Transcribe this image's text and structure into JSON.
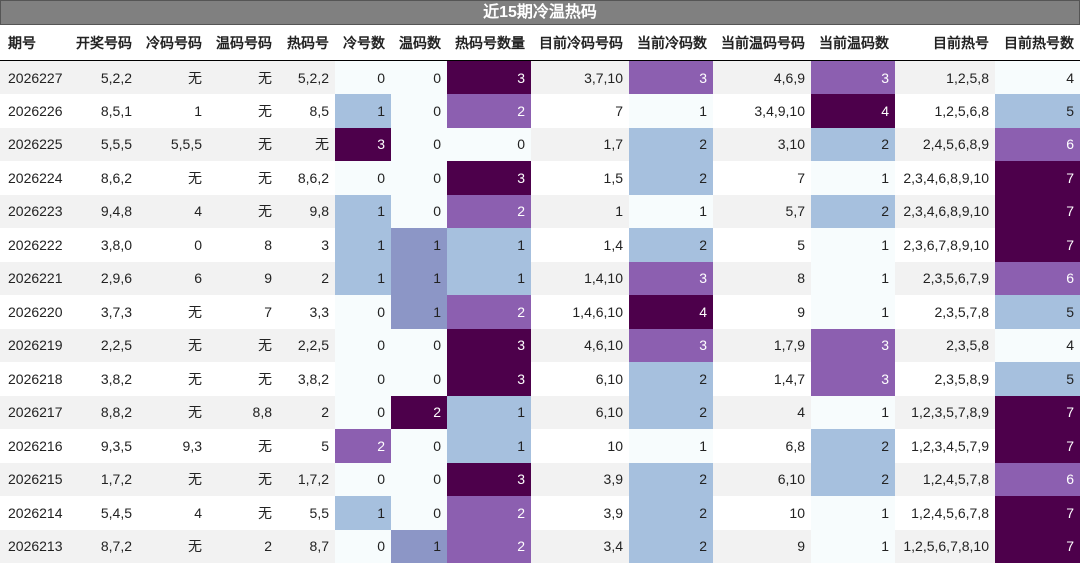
{
  "title": "近15期冷温热码",
  "table": {
    "header": [
      "期号",
      "开奖号码",
      "冷码号码",
      "温码号码",
      "热码号",
      "冷号数",
      "温码数",
      "热码号数量",
      "目前冷码号码",
      "当前冷码数",
      "当前温码号码",
      "当前温码数",
      "目前热号",
      "目前热号数"
    ],
    "rows": [
      [
        "2026227",
        "5,2,2",
        "无",
        "无",
        "5,2,2",
        0,
        0,
        3,
        "3,7,10",
        3,
        "4,6,9",
        3,
        "1,2,5,8",
        4
      ],
      [
        "2026226",
        "8,5,1",
        "1",
        "无",
        "8,5",
        1,
        0,
        2,
        "7",
        1,
        "3,4,9,10",
        4,
        "1,2,5,6,8",
        5
      ],
      [
        "2026225",
        "5,5,5",
        "5,5,5",
        "无",
        "无",
        3,
        0,
        0,
        "1,7",
        2,
        "3,10",
        2,
        "2,4,5,6,8,9",
        6
      ],
      [
        "2026224",
        "8,6,2",
        "无",
        "无",
        "8,6,2",
        0,
        0,
        3,
        "1,5",
        2,
        "7",
        1,
        "2,3,4,6,8,9,10",
        7
      ],
      [
        "2026223",
        "9,4,8",
        "4",
        "无",
        "9,8",
        1,
        0,
        2,
        "1",
        1,
        "5,7",
        2,
        "2,3,4,6,8,9,10",
        7
      ],
      [
        "2026222",
        "3,8,0",
        "0",
        "8",
        "3",
        1,
        1,
        1,
        "1,4",
        2,
        "5",
        1,
        "2,3,6,7,8,9,10",
        7
      ],
      [
        "2026221",
        "2,9,6",
        "6",
        "9",
        "2",
        1,
        1,
        1,
        "1,4,10",
        3,
        "8",
        1,
        "2,3,5,6,7,9",
        6
      ],
      [
        "2026220",
        "3,7,3",
        "无",
        "7",
        "3,3",
        0,
        1,
        2,
        "1,4,6,10",
        4,
        "9",
        1,
        "2,3,5,7,8",
        5
      ],
      [
        "2026219",
        "2,2,5",
        "无",
        "无",
        "2,2,5",
        0,
        0,
        3,
        "4,6,10",
        3,
        "1,7,9",
        3,
        "2,3,5,8",
        4
      ],
      [
        "2026218",
        "3,8,2",
        "无",
        "无",
        "3,8,2",
        0,
        0,
        3,
        "6,10",
        2,
        "1,4,7",
        3,
        "2,3,5,8,9",
        5
      ],
      [
        "2026217",
        "8,8,2",
        "无",
        "8,8",
        "2",
        0,
        2,
        1,
        "6,10",
        2,
        "4",
        1,
        "1,2,3,5,7,8,9",
        7
      ],
      [
        "2026216",
        "9,3,5",
        "9,3",
        "无",
        "5",
        2,
        0,
        1,
        "10",
        1,
        "6,8",
        2,
        "1,2,3,4,5,7,9",
        7
      ],
      [
        "2026215",
        "1,7,2",
        "无",
        "无",
        "1,7,2",
        0,
        0,
        3,
        "3,9",
        2,
        "6,10",
        2,
        "1,2,4,5,7,8",
        6
      ],
      [
        "2026214",
        "5,4,5",
        "4",
        "无",
        "5,5",
        1,
        0,
        2,
        "3,9",
        2,
        "10",
        1,
        "1,2,4,5,6,7,8",
        7
      ],
      [
        "2026213",
        "8,7,2",
        "无",
        "2",
        "8,7",
        0,
        1,
        2,
        "3,4",
        2,
        "9",
        1,
        "1,2,5,6,7,8,10",
        7
      ]
    ],
    "cell_colors": [
      [
        null,
        null,
        null,
        null,
        null,
        "#f7fcfd",
        "#f7fcfd",
        "#4d004b",
        null,
        "#8c5fb0",
        null,
        "#8c5fb0",
        null,
        "#f7fcfd"
      ],
      [
        null,
        null,
        null,
        null,
        null,
        "#a6c0de",
        "#f7fcfd",
        "#8c5fb0",
        null,
        "#f7fcfd",
        null,
        "#4d004b",
        null,
        "#a6c0de"
      ],
      [
        null,
        null,
        null,
        null,
        null,
        "#4d004b",
        "#f7fcfd",
        "#f7fcfd",
        null,
        "#a6c0de",
        null,
        "#a6c0de",
        null,
        "#8c5fb0"
      ],
      [
        null,
        null,
        null,
        null,
        null,
        "#f7fcfd",
        "#f7fcfd",
        "#4d004b",
        null,
        "#a6c0de",
        null,
        "#f7fcfd",
        null,
        "#4d004b"
      ],
      [
        null,
        null,
        null,
        null,
        null,
        "#a6c0de",
        "#f7fcfd",
        "#8c5fb0",
        null,
        "#f7fcfd",
        null,
        "#a6c0de",
        null,
        "#4d004b"
      ],
      [
        null,
        null,
        null,
        null,
        null,
        "#a6c0de",
        "#8c96c6",
        "#a6c0de",
        null,
        "#a6c0de",
        null,
        "#f7fcfd",
        null,
        "#4d004b"
      ],
      [
        null,
        null,
        null,
        null,
        null,
        "#a6c0de",
        "#8c96c6",
        "#a6c0de",
        null,
        "#8c5fb0",
        null,
        "#f7fcfd",
        null,
        "#8c5fb0"
      ],
      [
        null,
        null,
        null,
        null,
        null,
        "#f7fcfd",
        "#8c96c6",
        "#8c5fb0",
        null,
        "#4d004b",
        null,
        "#f7fcfd",
        null,
        "#a6c0de"
      ],
      [
        null,
        null,
        null,
        null,
        null,
        "#f7fcfd",
        "#f7fcfd",
        "#4d004b",
        null,
        "#8c5fb0",
        null,
        "#8c5fb0",
        null,
        "#f7fcfd"
      ],
      [
        null,
        null,
        null,
        null,
        null,
        "#f7fcfd",
        "#f7fcfd",
        "#4d004b",
        null,
        "#a6c0de",
        null,
        "#8c5fb0",
        null,
        "#a6c0de"
      ],
      [
        null,
        null,
        null,
        null,
        null,
        "#f7fcfd",
        "#4d004b",
        "#a6c0de",
        null,
        "#a6c0de",
        null,
        "#f7fcfd",
        null,
        "#4d004b"
      ],
      [
        null,
        null,
        null,
        null,
        null,
        "#8c5fb0",
        "#f7fcfd",
        "#a6c0de",
        null,
        "#f7fcfd",
        null,
        "#a6c0de",
        null,
        "#4d004b"
      ],
      [
        null,
        null,
        null,
        null,
        null,
        "#f7fcfd",
        "#f7fcfd",
        "#4d004b",
        null,
        "#a6c0de",
        null,
        "#a6c0de",
        null,
        "#8c5fb0"
      ],
      [
        null,
        null,
        null,
        null,
        null,
        "#a6c0de",
        "#f7fcfd",
        "#8c5fb0",
        null,
        "#a6c0de",
        null,
        "#f7fcfd",
        null,
        "#4d004b"
      ],
      [
        null,
        null,
        null,
        null,
        null,
        "#f7fcfd",
        "#8c96c6",
        "#8c5fb0",
        null,
        "#a6c0de",
        null,
        "#f7fcfd",
        null,
        "#4d004b"
      ]
    ]
  }
}
